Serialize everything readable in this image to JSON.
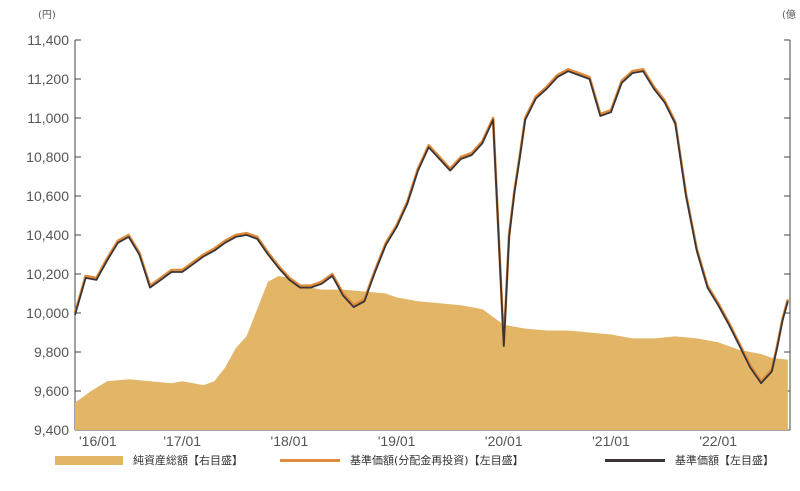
{
  "colors": {
    "area": "#E2B567",
    "reinvested_line": "#E08A3C",
    "nav_line": "#3B3535",
    "axis": "#444444"
  },
  "units": {
    "left": "(円)",
    "right": "(億"
  },
  "legend": [
    {
      "label": "純資産総額【右目盛】",
      "kind": "area",
      "color": "#E2B567"
    },
    {
      "label": "基準価額(分配金再投資)【左目盛】",
      "kind": "line",
      "color": "#E08A3C"
    },
    {
      "label": "基準価額【左目盛】",
      "kind": "line",
      "color": "#3B3535"
    }
  ],
  "chart_data": {
    "type": "line",
    "title": "",
    "x_categories": [
      "'16/01",
      "'17/01",
      "'18/01",
      "'19/01",
      "'20/01",
      "'21/01",
      "'22/01"
    ],
    "ylim": [
      9400,
      11400
    ],
    "yticks": [
      "11,400",
      "11,200",
      "11,000",
      "10,800",
      "10,600",
      "10,400",
      "10,200",
      "10,000",
      "9,800",
      "9,600",
      "9,400"
    ],
    "right_axis_note": "right-axis tick labels cut off at image edge",
    "series": [
      {
        "name": "基準価額【左目盛】",
        "kind": "line",
        "x": [
          2016.0,
          2016.1,
          2016.2,
          2016.3,
          2016.4,
          2016.5,
          2016.6,
          2016.7,
          2016.8,
          2016.9,
          2017.0,
          2017.1,
          2017.2,
          2017.3,
          2017.4,
          2017.5,
          2017.6,
          2017.7,
          2017.8,
          2017.9,
          2018.0,
          2018.1,
          2018.2,
          2018.3,
          2018.4,
          2018.5,
          2018.6,
          2018.7,
          2018.8,
          2018.9,
          2019.0,
          2019.1,
          2019.2,
          2019.3,
          2019.4,
          2019.5,
          2019.6,
          2019.7,
          2019.8,
          2019.9,
          2020.0,
          2020.05,
          2020.1,
          2020.15,
          2020.2,
          2020.3,
          2020.4,
          2020.5,
          2020.6,
          2020.7,
          2020.8,
          2020.9,
          2021.0,
          2021.1,
          2021.2,
          2021.3,
          2021.4,
          2021.5,
          2021.6,
          2021.7,
          2021.8,
          2021.9,
          2022.0,
          2022.1,
          2022.2,
          2022.3,
          2022.4,
          2022.5,
          2022.55,
          2022.6,
          2022.65
        ],
        "values": [
          9990,
          10180,
          10170,
          10270,
          10360,
          10390,
          10300,
          10130,
          10170,
          10210,
          10210,
          10250,
          10290,
          10320,
          10360,
          10390,
          10400,
          10380,
          10300,
          10230,
          10170,
          10130,
          10130,
          10150,
          10190,
          10090,
          10030,
          10060,
          10210,
          10350,
          10440,
          10560,
          10730,
          10850,
          10790,
          10730,
          10790,
          10810,
          10870,
          10990,
          9830,
          10390,
          10620,
          10800,
          10990,
          11100,
          11150,
          11210,
          11240,
          11220,
          11200,
          11010,
          11030,
          11180,
          11230,
          11240,
          11150,
          11080,
          10970,
          10600,
          10320,
          10130,
          10040,
          9940,
          9830,
          9720,
          9640,
          9700,
          9820,
          9960,
          10060
        ]
      },
      {
        "name": "基準価額(分配金再投資)【左目盛】",
        "kind": "line",
        "x": [
          2016.0,
          2016.1,
          2016.2,
          2016.3,
          2016.4,
          2016.5,
          2016.6,
          2016.7,
          2016.8,
          2016.9,
          2017.0,
          2017.1,
          2017.2,
          2017.3,
          2017.4,
          2017.5,
          2017.6,
          2017.7,
          2017.8,
          2017.9,
          2018.0,
          2018.1,
          2018.2,
          2018.3,
          2018.4,
          2018.5,
          2018.6,
          2018.7,
          2018.8,
          2018.9,
          2019.0,
          2019.1,
          2019.2,
          2019.3,
          2019.4,
          2019.5,
          2019.6,
          2019.7,
          2019.8,
          2019.9,
          2020.0,
          2020.05,
          2020.1,
          2020.15,
          2020.2,
          2020.3,
          2020.4,
          2020.5,
          2020.6,
          2020.7,
          2020.8,
          2020.9,
          2021.0,
          2021.1,
          2021.2,
          2021.3,
          2021.4,
          2021.5,
          2021.6,
          2021.7,
          2021.8,
          2021.9,
          2022.0,
          2022.1,
          2022.2,
          2022.3,
          2022.4,
          2022.5,
          2022.55,
          2022.6,
          2022.65
        ],
        "values": [
          10000,
          10190,
          10180,
          10280,
          10370,
          10400,
          10310,
          10140,
          10180,
          10220,
          10220,
          10260,
          10300,
          10330,
          10370,
          10400,
          10410,
          10390,
          10310,
          10240,
          10180,
          10140,
          10140,
          10160,
          10200,
          10100,
          10040,
          10070,
          10220,
          10360,
          10450,
          10570,
          10740,
          10860,
          10800,
          10740,
          10800,
          10820,
          10880,
          11000,
          9840,
          10400,
          10630,
          10810,
          11000,
          11110,
          11160,
          11220,
          11250,
          11230,
          11210,
          11020,
          11040,
          11190,
          11240,
          11250,
          11160,
          11090,
          10980,
          10610,
          10330,
          10140,
          10050,
          9950,
          9840,
          9730,
          9650,
          9710,
          9830,
          9970,
          10070
        ]
      },
      {
        "name": "純資産総額【右目盛】",
        "kind": "area",
        "x": [
          2016.0,
          2016.15,
          2016.3,
          2016.5,
          2016.7,
          2016.9,
          2017.0,
          2017.2,
          2017.3,
          2017.4,
          2017.5,
          2017.6,
          2017.7,
          2017.8,
          2017.9,
          2018.0,
          2018.1,
          2018.3,
          2018.5,
          2018.7,
          2018.9,
          2019.0,
          2019.2,
          2019.4,
          2019.6,
          2019.8,
          2020.0,
          2020.2,
          2020.4,
          2020.6,
          2020.8,
          2021.0,
          2021.2,
          2021.4,
          2021.6,
          2021.8,
          2022.0,
          2022.2,
          2022.4,
          2022.5,
          2022.65
        ],
        "values": [
          9540,
          9600,
          9650,
          9660,
          9650,
          9640,
          9650,
          9630,
          9650,
          9720,
          9820,
          9880,
          10020,
          10160,
          10190,
          10180,
          10140,
          10120,
          10120,
          10110,
          10100,
          10080,
          10060,
          10050,
          10040,
          10020,
          9940,
          9920,
          9910,
          9910,
          9900,
          9890,
          9870,
          9870,
          9880,
          9870,
          9850,
          9810,
          9790,
          9770,
          9760
        ]
      }
    ]
  }
}
